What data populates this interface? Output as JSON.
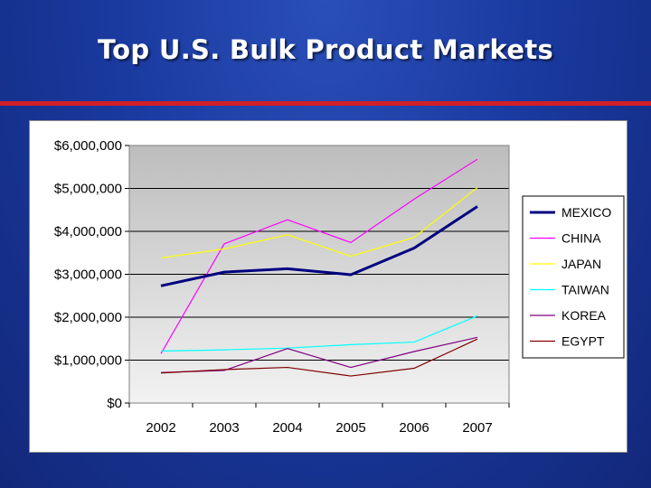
{
  "slide": {
    "title": "Top U.S. Bulk Product Markets"
  },
  "colors": {
    "background": "#1a3aa0",
    "rule": "#d21f28",
    "plot_top": "#bdbdbd",
    "plot_bottom": "#f2f2f2"
  },
  "chart_data": {
    "type": "line",
    "title": "",
    "xlabel": "",
    "ylabel": "",
    "categories": [
      "2002",
      "2003",
      "2004",
      "2005",
      "2006",
      "2007"
    ],
    "ylim": [
      0,
      6000000
    ],
    "yticks": [
      0,
      1000000,
      2000000,
      3000000,
      4000000,
      5000000,
      6000000
    ],
    "ytick_labels": [
      "$0",
      "$1,000,000",
      "$2,000,000",
      "$3,000,000",
      "$4,000,000",
      "$5,000,000",
      "$6,000,000"
    ],
    "grid": "horizontal",
    "legend": "right",
    "series": [
      {
        "name": "MEXICO",
        "color": "#000080",
        "width": 3,
        "values": [
          2730000,
          3050000,
          3130000,
          2990000,
          3610000,
          4580000
        ]
      },
      {
        "name": "CHINA",
        "color": "#ff00ff",
        "width": 1.2,
        "values": [
          1150000,
          3710000,
          4270000,
          3740000,
          4750000,
          5680000
        ]
      },
      {
        "name": "JAPAN",
        "color": "#ffff00",
        "width": 1.2,
        "values": [
          3380000,
          3590000,
          3920000,
          3420000,
          3860000,
          5020000
        ]
      },
      {
        "name": "TAIWAN",
        "color": "#00ffff",
        "width": 1.2,
        "values": [
          1210000,
          1240000,
          1280000,
          1360000,
          1420000,
          2030000
        ]
      },
      {
        "name": "KOREA",
        "color": "#800080",
        "width": 1.2,
        "values": [
          710000,
          760000,
          1270000,
          830000,
          1200000,
          1530000
        ]
      },
      {
        "name": "EGYPT",
        "color": "#800000",
        "width": 1.2,
        "values": [
          700000,
          780000,
          830000,
          630000,
          810000,
          1490000
        ]
      }
    ]
  }
}
